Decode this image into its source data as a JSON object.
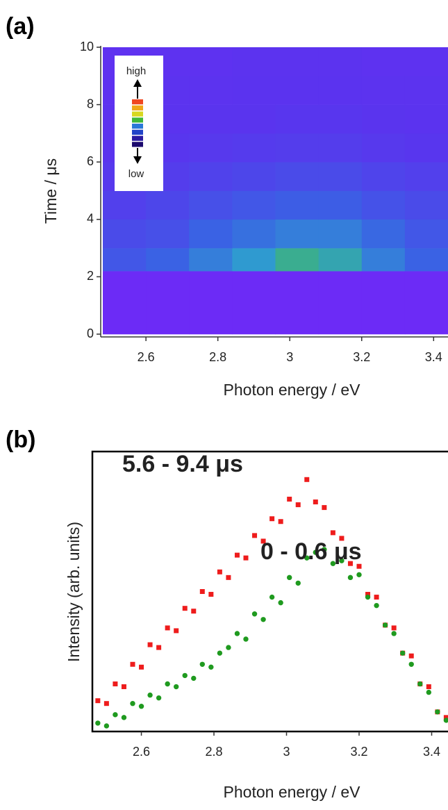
{
  "chart_data": [
    {
      "type": "heatmap",
      "panel_label": "(a)",
      "xlabel": "Photon energy / eV",
      "ylabel": "Time / μs",
      "xlim": [
        2.48,
        3.44
      ],
      "ylim": [
        0,
        10
      ],
      "xticks": [
        2.6,
        2.8,
        3.0,
        3.2,
        3.4
      ],
      "yticks": [
        0,
        2,
        4,
        6,
        8,
        10
      ],
      "x_edges": [
        2.48,
        2.6,
        2.72,
        2.84,
        2.96,
        3.08,
        3.2,
        3.32,
        3.44
      ],
      "y_edges": [
        0,
        2.2,
        3,
        4,
        5,
        6,
        7,
        8,
        9,
        10
      ],
      "zlim": [
        0,
        1
      ],
      "colorscale": [
        "#7228f8",
        "#5a34ee",
        "#3a62e4",
        "#2f9ad0",
        "#44c050",
        "#c8e020"
      ],
      "z": [
        [
          0.05,
          0.05,
          0.05,
          0.05,
          0.05,
          0.05,
          0.05,
          0.05
        ],
        [
          0.35,
          0.4,
          0.5,
          0.6,
          0.7,
          0.65,
          0.5,
          0.4
        ],
        [
          0.3,
          0.32,
          0.4,
          0.45,
          0.5,
          0.5,
          0.42,
          0.35
        ],
        [
          0.25,
          0.28,
          0.32,
          0.35,
          0.38,
          0.38,
          0.33,
          0.3
        ],
        [
          0.22,
          0.24,
          0.26,
          0.28,
          0.3,
          0.3,
          0.27,
          0.25
        ],
        [
          0.2,
          0.21,
          0.22,
          0.23,
          0.24,
          0.24,
          0.22,
          0.21
        ],
        [
          0.18,
          0.19,
          0.2,
          0.2,
          0.21,
          0.21,
          0.2,
          0.19
        ],
        [
          0.17,
          0.18,
          0.18,
          0.19,
          0.19,
          0.19,
          0.18,
          0.18
        ],
        [
          0.16,
          0.17,
          0.17,
          0.18,
          0.18,
          0.18,
          0.17,
          0.17
        ]
      ],
      "colorbar": {
        "high": "high",
        "low": "low",
        "colors": [
          "#f04820",
          "#f0a818",
          "#d8d820",
          "#40b838",
          "#2a78d8",
          "#2244c8",
          "#2a1aa0",
          "#1b0a6e"
        ]
      }
    },
    {
      "type": "scatter",
      "panel_label": "(b)",
      "xlabel": "Photon energy / eV",
      "ylabel": "Intensity (arb. units)",
      "xlim": [
        2.465,
        3.445
      ],
      "ylim": [
        0,
        100
      ],
      "xticks": [
        2.6,
        2.8,
        3.0,
        3.2,
        3.4
      ],
      "x": [
        2.48,
        2.504,
        2.528,
        2.552,
        2.576,
        2.6,
        2.624,
        2.648,
        2.672,
        2.696,
        2.72,
        2.744,
        2.768,
        2.792,
        2.816,
        2.84,
        2.864,
        2.888,
        2.912,
        2.936,
        2.96,
        2.984,
        3.008,
        3.032,
        3.056,
        3.08,
        3.104,
        3.128,
        3.152,
        3.176,
        3.2,
        3.224,
        3.248,
        3.272,
        3.296,
        3.32,
        3.344,
        3.368,
        3.392,
        3.416,
        3.44
      ],
      "series": [
        {
          "name": "5.6 - 9.4 μs",
          "color": "#ee1c1c",
          "marker": "square",
          "values": [
            11,
            10,
            17,
            16,
            24,
            23,
            31,
            30,
            37,
            36,
            44,
            43,
            50,
            49,
            57,
            55,
            63,
            62,
            70,
            68,
            76,
            75,
            83,
            81,
            90,
            82,
            80,
            71,
            69,
            60,
            59,
            49,
            48,
            38,
            37,
            28,
            27,
            17,
            16,
            7,
            5
          ]
        },
        {
          "name": "0 - 0.6 μs",
          "color": "#1f9a1f",
          "marker": "circle",
          "values": [
            3,
            2,
            6,
            5,
            10,
            9,
            13,
            12,
            17,
            16,
            20,
            19,
            24,
            23,
            28,
            30,
            35,
            33,
            42,
            40,
            48,
            46,
            55,
            53,
            62,
            64,
            65,
            60,
            61,
            55,
            56,
            48,
            45,
            38,
            35,
            28,
            24,
            17,
            14,
            7,
            4
          ]
        }
      ]
    }
  ]
}
